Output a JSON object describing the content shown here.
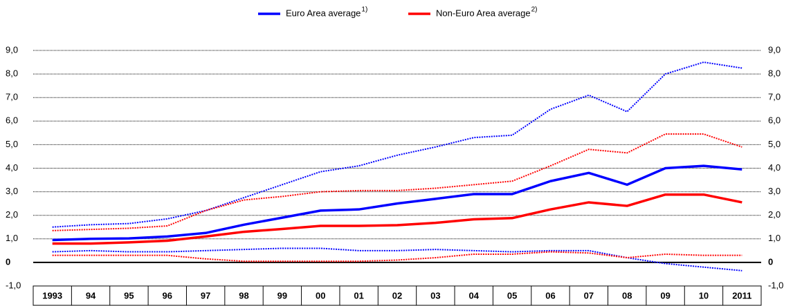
{
  "chart_data": {
    "type": "line",
    "categories": [
      "1993",
      "94",
      "95",
      "96",
      "97",
      "98",
      "99",
      "00",
      "01",
      "02",
      "03",
      "04",
      "05",
      "06",
      "07",
      "08",
      "09",
      "10",
      "2011"
    ],
    "series": [
      {
        "name": "Euro Area average",
        "footnote": "1)",
        "color": "#0000ff",
        "dashed": false,
        "values": [
          0.95,
          1.0,
          1.02,
          1.1,
          1.25,
          1.6,
          1.9,
          2.2,
          2.25,
          2.5,
          2.7,
          2.9,
          2.9,
          3.45,
          3.8,
          3.3,
          4.0,
          4.1,
          3.95
        ]
      },
      {
        "name": "Non-Euro Area average",
        "footnote": "2)",
        "color": "#ff0000",
        "dashed": false,
        "values": [
          0.8,
          0.8,
          0.85,
          0.92,
          1.1,
          1.3,
          1.42,
          1.55,
          1.55,
          1.58,
          1.68,
          1.83,
          1.88,
          2.25,
          2.55,
          2.4,
          2.88,
          2.88,
          2.55
        ]
      },
      {
        "color": "#0000ff",
        "dashed": true,
        "values": [
          1.5,
          1.6,
          1.65,
          1.85,
          2.2,
          2.75,
          3.3,
          3.85,
          4.1,
          4.55,
          4.9,
          5.3,
          5.4,
          6.5,
          7.1,
          6.4,
          8.0,
          8.5,
          8.25
        ]
      },
      {
        "color": "#0000ff",
        "dashed": true,
        "values": [
          0.45,
          0.5,
          0.45,
          0.45,
          0.5,
          0.55,
          0.6,
          0.6,
          0.5,
          0.5,
          0.55,
          0.5,
          0.45,
          0.5,
          0.5,
          0.2,
          -0.05,
          -0.2,
          -0.35
        ]
      },
      {
        "color": "#ff0000",
        "dashed": true,
        "values": [
          1.35,
          1.4,
          1.45,
          1.55,
          2.2,
          2.65,
          2.8,
          3.0,
          3.05,
          3.05,
          3.15,
          3.3,
          3.45,
          4.1,
          4.8,
          4.65,
          5.45,
          5.45,
          4.9
        ]
      },
      {
        "color": "#ff0000",
        "dashed": true,
        "values": [
          0.3,
          0.3,
          0.3,
          0.3,
          0.15,
          0.05,
          0.05,
          0.05,
          0.05,
          0.1,
          0.2,
          0.35,
          0.35,
          0.45,
          0.4,
          0.2,
          0.35,
          0.3,
          0.3
        ]
      }
    ],
    "ylim": [
      -1,
      9
    ],
    "yticks": [
      {
        "value": -1,
        "label": "-1,0"
      },
      0,
      {
        "value": 1,
        "label": "1,0"
      },
      {
        "value": 2,
        "label": "2,0"
      },
      {
        "value": 3,
        "label": "3,0"
      },
      {
        "value": 4,
        "label": "4,0"
      },
      {
        "value": 5,
        "label": "5,0"
      },
      {
        "value": 6,
        "label": "6,0"
      },
      {
        "value": 7,
        "label": "7,0"
      },
      {
        "value": 8,
        "label": "8,0"
      },
      {
        "value": 9,
        "label": "9,0"
      }
    ],
    "grid": true,
    "legend": "top"
  }
}
